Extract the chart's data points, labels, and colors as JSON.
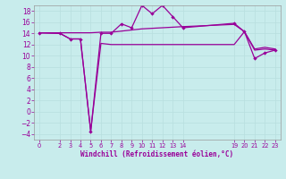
{
  "background_color": "#c8ecec",
  "line_color": "#990099",
  "grid_color": "#b8dede",
  "ylim": [
    -5,
    19
  ],
  "xlim": [
    -0.5,
    23.5
  ],
  "yticks": [
    -4,
    -2,
    0,
    2,
    4,
    6,
    8,
    10,
    12,
    14,
    16,
    18
  ],
  "xtick_labels": [
    "0",
    "2",
    "3",
    "4",
    "5",
    "6",
    "7",
    "8",
    "9",
    "10",
    "11",
    "12",
    "13",
    "14",
    "19",
    "20",
    "21",
    "22",
    "23"
  ],
  "xtick_pos": [
    0,
    2,
    3,
    4,
    5,
    6,
    7,
    8,
    9,
    10,
    11,
    12,
    13,
    14,
    19,
    20,
    21,
    22,
    23
  ],
  "xlabel": "Windchill (Refroidissement éolien,°C)",
  "series1_x": [
    0,
    2,
    3,
    4,
    5,
    6,
    7,
    8,
    9,
    10,
    11,
    12,
    13,
    14,
    19,
    20,
    21,
    22,
    23
  ],
  "series1_y": [
    14.1,
    14.0,
    13.0,
    13.0,
    -3.5,
    14.0,
    14.0,
    15.7,
    15.0,
    19.0,
    17.5,
    19.0,
    17.0,
    15.0,
    15.8,
    14.3,
    9.5,
    10.5,
    11.0
  ],
  "series2_x": [
    0,
    2,
    3,
    4,
    5,
    6,
    7,
    8,
    9,
    10,
    11,
    12,
    13,
    14,
    19,
    20,
    21,
    22,
    23
  ],
  "series2_y": [
    14.1,
    14.0,
    13.0,
    13.0,
    -3.5,
    12.2,
    12.0,
    12.0,
    12.0,
    12.0,
    12.0,
    12.0,
    12.0,
    12.0,
    12.0,
    14.3,
    11.0,
    11.2,
    11.0
  ],
  "series3_x": [
    0,
    2,
    3,
    4,
    5,
    6,
    7,
    8,
    9,
    10,
    11,
    12,
    13,
    14,
    19,
    20,
    21,
    22,
    23
  ],
  "series3_y": [
    14.1,
    14.1,
    14.1,
    14.1,
    14.1,
    14.2,
    14.2,
    14.4,
    14.6,
    14.8,
    14.9,
    15.0,
    15.1,
    15.2,
    15.6,
    14.3,
    11.2,
    11.5,
    11.2
  ]
}
